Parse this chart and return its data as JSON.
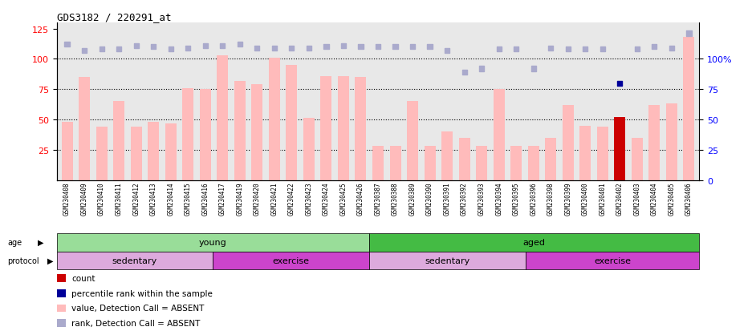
{
  "title": "GDS3182 / 220291_at",
  "samples": [
    "GSM230408",
    "GSM230409",
    "GSM230410",
    "GSM230411",
    "GSM230412",
    "GSM230413",
    "GSM230414",
    "GSM230415",
    "GSM230416",
    "GSM230417",
    "GSM230419",
    "GSM230420",
    "GSM230421",
    "GSM230422",
    "GSM230423",
    "GSM230424",
    "GSM230425",
    "GSM230426",
    "GSM230387",
    "GSM230388",
    "GSM230389",
    "GSM230390",
    "GSM230391",
    "GSM230392",
    "GSM230393",
    "GSM230394",
    "GSM230395",
    "GSM230396",
    "GSM230398",
    "GSM230399",
    "GSM230400",
    "GSM230401",
    "GSM230402",
    "GSM230403",
    "GSM230404",
    "GSM230405",
    "GSM230406"
  ],
  "bar_values": [
    48,
    85,
    44,
    65,
    44,
    48,
    47,
    76,
    75,
    103,
    82,
    79,
    101,
    95,
    51,
    86,
    86,
    85,
    28,
    28,
    65,
    28,
    40,
    35,
    28,
    75,
    28,
    28,
    35,
    62,
    45,
    44,
    52,
    35,
    62,
    63,
    118
  ],
  "bar_special": [
    false,
    false,
    false,
    false,
    false,
    false,
    false,
    false,
    false,
    false,
    false,
    false,
    false,
    false,
    false,
    false,
    false,
    false,
    false,
    false,
    false,
    false,
    false,
    false,
    false,
    false,
    false,
    false,
    false,
    false,
    false,
    false,
    true,
    false,
    false,
    false,
    false
  ],
  "rank_values": [
    112,
    107,
    108,
    108,
    111,
    110,
    108,
    109,
    111,
    111,
    112,
    109,
    109,
    109,
    109,
    110,
    111,
    110,
    110,
    110,
    110,
    110,
    107,
    89,
    92,
    108,
    108,
    92,
    109,
    108,
    108,
    108,
    80,
    108,
    110,
    109,
    121
  ],
  "rank_special": [
    false,
    false,
    false,
    false,
    false,
    false,
    false,
    false,
    false,
    false,
    false,
    false,
    false,
    false,
    false,
    false,
    false,
    false,
    false,
    false,
    false,
    false,
    false,
    false,
    false,
    false,
    false,
    false,
    false,
    false,
    false,
    false,
    true,
    false,
    false,
    false,
    false
  ],
  "bar_color_normal": "#ffbbbb",
  "bar_color_special": "#cc0000",
  "rank_color_normal": "#aaaacc",
  "rank_color_special": "#000099",
  "ylim_left": [
    0,
    130
  ],
  "yticks_left": [
    25,
    50,
    75,
    100,
    125
  ],
  "yticks_right_vals": [
    0,
    25,
    50,
    75,
    100
  ],
  "yticks_right_labels": [
    "0",
    "25",
    "50",
    "75",
    "100%"
  ],
  "age_groups": [
    {
      "label": "young",
      "start": 0,
      "end": 18,
      "color": "#99dd99"
    },
    {
      "label": "aged",
      "start": 18,
      "end": 37,
      "color": "#44bb44"
    }
  ],
  "protocol_groups": [
    {
      "label": "sedentary",
      "start": 0,
      "end": 9,
      "color": "#ddaadd"
    },
    {
      "label": "exercise",
      "start": 9,
      "end": 18,
      "color": "#cc44cc"
    },
    {
      "label": "sedentary",
      "start": 18,
      "end": 27,
      "color": "#ddaadd"
    },
    {
      "label": "exercise",
      "start": 27,
      "end": 37,
      "color": "#cc44cc"
    }
  ],
  "legend_items": [
    {
      "label": "count",
      "color": "#cc0000"
    },
    {
      "label": "percentile rank within the sample",
      "color": "#000099"
    },
    {
      "label": "value, Detection Call = ABSENT",
      "color": "#ffbbbb"
    },
    {
      "label": "rank, Detection Call = ABSENT",
      "color": "#aaaacc"
    }
  ],
  "dotted_lines": [
    25,
    50,
    75,
    100
  ],
  "background_color": "#e8e8e8",
  "chart_bg": "#e8e8e8"
}
